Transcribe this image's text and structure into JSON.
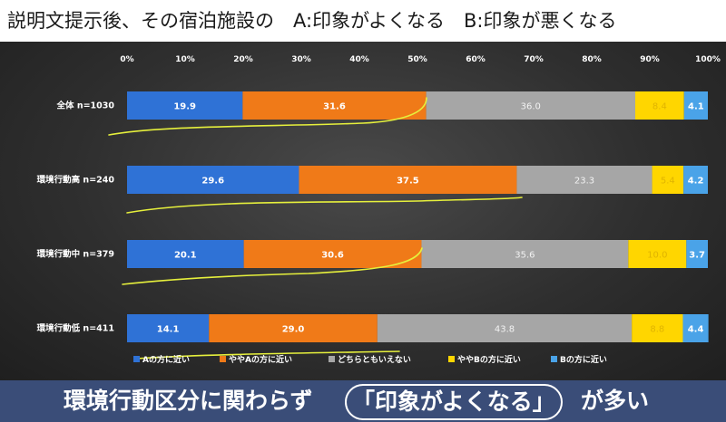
{
  "title": "説明文提示後、その宿泊施設の　A:印象がよくなる　B:印象が悪くなる",
  "footer": {
    "part1": "環境行動区分に関わらず",
    "highlight": "「印象がよくなる」",
    "part2": "が多い"
  },
  "chart_data": {
    "type": "bar",
    "orientation": "horizontal",
    "stacked": "percent",
    "xlim": [
      0,
      100
    ],
    "x_ticks": [
      "0%",
      "10%",
      "20%",
      "30%",
      "40%",
      "50%",
      "60%",
      "70%",
      "80%",
      "90%",
      "100%"
    ],
    "categories": [
      "全体 n=1030",
      "環境行動高 n=240",
      "環境行動中 n=379",
      "環境行動低 n=411"
    ],
    "series": [
      {
        "name": "Aの方に近い",
        "color": "#2f72d6",
        "values": [
          19.9,
          29.6,
          20.1,
          14.1
        ]
      },
      {
        "name": "ややAの方に近い",
        "color": "#f07a18",
        "values": [
          31.6,
          37.5,
          30.6,
          29.0
        ]
      },
      {
        "name": "どちらともいえない",
        "color": "#a6a6a6",
        "values": [
          36.0,
          23.3,
          35.6,
          43.8
        ]
      },
      {
        "name": "ややBの方に近い",
        "color": "#ffd600",
        "values": [
          8.4,
          5.4,
          10.0,
          8.8
        ]
      },
      {
        "name": "Bの方に近い",
        "color": "#4aa3e8",
        "values": [
          4.1,
          4.2,
          3.7,
          4.4
        ]
      }
    ],
    "legend_position": "bottom",
    "grid": false,
    "annotation_color": "#e6f03c"
  }
}
